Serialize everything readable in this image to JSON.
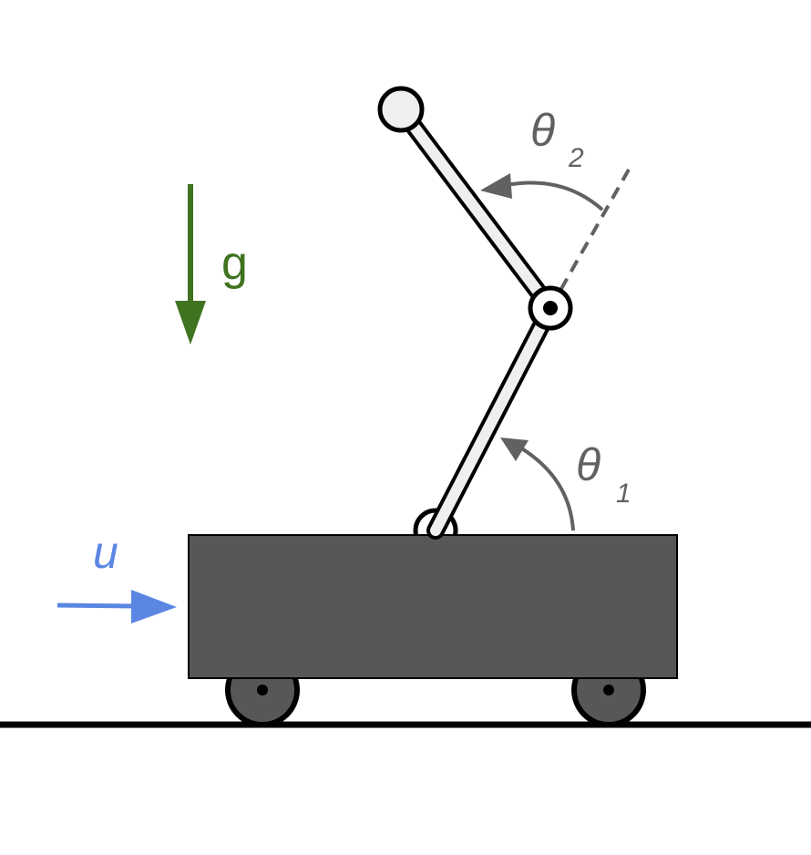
{
  "labels": {
    "gravity": "g",
    "control_input": "u",
    "theta1_symbol": "θ",
    "theta1_subscript": "1",
    "theta2_symbol": "θ",
    "theta2_subscript": "2"
  },
  "colors": {
    "gravity": "#3f7320",
    "control_input": "#5b87e3",
    "angle_annotation": "#616161",
    "cart_body": "#575757",
    "pendulum_link": "#efefef",
    "outline": "#000000",
    "ground": "#000000"
  },
  "icons": {
    "gravity_arrow": "arrow-down-icon",
    "force_arrow": "arrow-right-icon",
    "theta1_arrow": "curved-arrow-ccw-icon",
    "theta2_arrow": "curved-arrow-ccw-icon"
  }
}
